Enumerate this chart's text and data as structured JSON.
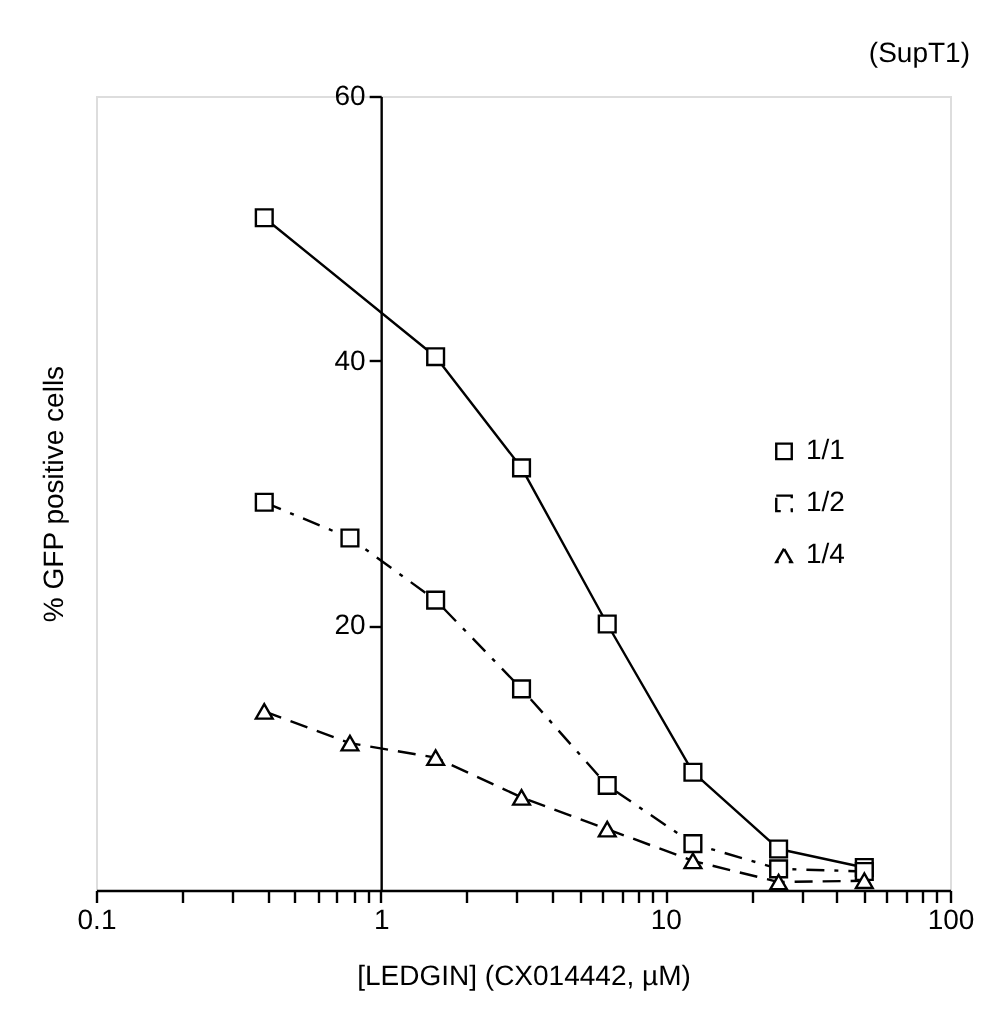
{
  "chart_data": {
    "type": "line",
    "xlabel": "[LEDGIN] (CX014442, µM)",
    "ylabel": "% GFP positive cells",
    "annotations": [
      "(SupT1)"
    ],
    "log": "x",
    "xlim": [
      0.1,
      100
    ],
    "ylim": [
      0,
      60
    ],
    "xticks": [
      0.1,
      {
        "value": 0.2,
        "label": null
      },
      {
        "value": 0.3,
        "label": null
      },
      {
        "value": 0.4,
        "label": null
      },
      {
        "value": 0.5,
        "label": null
      },
      {
        "value": 0.6,
        "label": null
      },
      {
        "value": 0.7,
        "label": null
      },
      {
        "value": 0.8,
        "label": null
      },
      {
        "value": 0.9,
        "label": null
      },
      1,
      {
        "value": 2,
        "label": null
      },
      {
        "value": 3,
        "label": null
      },
      {
        "value": 4,
        "label": null
      },
      {
        "value": 5,
        "label": null
      },
      {
        "value": 6,
        "label": null
      },
      {
        "value": 7,
        "label": null
      },
      {
        "value": 8,
        "label": null
      },
      {
        "value": 9,
        "label": null
      },
      10,
      {
        "value": 20,
        "label": null
      },
      {
        "value": 30,
        "label": null
      },
      {
        "value": 40,
        "label": null
      },
      {
        "value": 50,
        "label": null
      },
      {
        "value": 60,
        "label": null
      },
      {
        "value": 70,
        "label": null
      },
      {
        "value": 80,
        "label": null
      },
      {
        "value": 90,
        "label": null
      },
      100
    ],
    "yticks": [
      20,
      40,
      60
    ],
    "grid": false,
    "legend": "right",
    "series": [
      {
        "name": "1/1",
        "color": "#000000",
        "marker": "square",
        "line_style": "solid",
        "x": [
          0.39,
          1.56,
          3.125,
          6.25,
          12.5,
          25,
          50
        ],
        "values": [
          50.8,
          40.3,
          31.9,
          20.1,
          8.9,
          3.1,
          1.7
        ]
      },
      {
        "name": "1/2",
        "color": "#000000",
        "marker": "square",
        "line_style": "dashdot",
        "x": [
          0.39,
          0.78,
          1.56,
          3.125,
          6.25,
          12.5,
          25,
          50
        ],
        "values": [
          29.3,
          26.6,
          21.9,
          15.2,
          7.9,
          3.5,
          1.6,
          1.4
        ]
      },
      {
        "name": "1/4",
        "color": "#000000",
        "marker": "triangle",
        "line_style": "dashed",
        "x": [
          0.39,
          0.78,
          1.56,
          3.125,
          6.25,
          12.5,
          25,
          50
        ],
        "values": [
          13.5,
          11.1,
          10.0,
          7.0,
          4.6,
          2.2,
          0.6,
          0.7
        ]
      }
    ]
  }
}
